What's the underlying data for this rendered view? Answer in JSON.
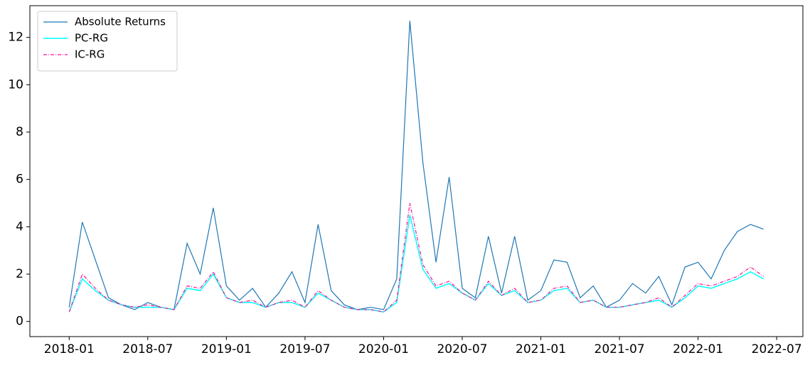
{
  "chart_data": {
    "type": "line",
    "x": [
      "2018-01",
      "2018-02",
      "2018-03",
      "2018-04",
      "2018-05",
      "2018-06",
      "2018-07",
      "2018-08",
      "2018-09",
      "2018-10",
      "2018-11",
      "2018-12",
      "2019-01",
      "2019-02",
      "2019-03",
      "2019-04",
      "2019-05",
      "2019-06",
      "2019-07",
      "2019-08",
      "2019-09",
      "2019-10",
      "2019-11",
      "2019-12",
      "2020-01",
      "2020-02",
      "2020-03",
      "2020-04",
      "2020-05",
      "2020-06",
      "2020-07",
      "2020-08",
      "2020-09",
      "2020-10",
      "2020-11",
      "2020-12",
      "2021-01",
      "2021-02",
      "2021-03",
      "2021-04",
      "2021-05",
      "2021-06",
      "2021-07",
      "2021-08",
      "2021-09",
      "2021-10",
      "2021-11",
      "2021-12",
      "2022-01",
      "2022-02",
      "2022-03",
      "2022-04",
      "2022-05",
      "2022-06"
    ],
    "series": [
      {
        "name": "Absolute Returns",
        "color": "#1f77b4",
        "dash": "none",
        "width": 1.2,
        "values": [
          0.6,
          4.2,
          2.6,
          1.0,
          0.7,
          0.5,
          0.8,
          0.6,
          0.5,
          3.3,
          2.0,
          4.8,
          1.5,
          0.9,
          1.4,
          0.6,
          1.2,
          2.1,
          0.8,
          4.1,
          1.3,
          0.7,
          0.5,
          0.6,
          0.5,
          1.8,
          12.7,
          6.7,
          2.5,
          6.1,
          1.4,
          1.0,
          3.6,
          1.2,
          3.6,
          0.9,
          1.3,
          2.6,
          2.5,
          1.0,
          1.5,
          0.6,
          0.9,
          1.6,
          1.2,
          1.9,
          0.7,
          2.3,
          2.5,
          1.8,
          3.0,
          3.8,
          4.1,
          3.9
        ]
      },
      {
        "name": "PC-RG",
        "color": "#00ffff",
        "dash": "none",
        "width": 1.5,
        "values": [
          0.4,
          1.8,
          1.3,
          0.9,
          0.7,
          0.6,
          0.6,
          0.6,
          0.5,
          1.4,
          1.3,
          2.0,
          1.0,
          0.8,
          0.8,
          0.6,
          0.8,
          0.8,
          0.6,
          1.2,
          0.9,
          0.6,
          0.5,
          0.5,
          0.4,
          0.8,
          4.5,
          2.2,
          1.4,
          1.6,
          1.2,
          0.9,
          1.6,
          1.1,
          1.3,
          0.8,
          0.9,
          1.3,
          1.4,
          0.8,
          0.9,
          0.6,
          0.6,
          0.7,
          0.8,
          0.9,
          0.6,
          1.0,
          1.5,
          1.4,
          1.6,
          1.8,
          2.1,
          1.8
        ]
      },
      {
        "name": "IC-RG",
        "color": "#ff1493",
        "dash": "5,2,1,2",
        "width": 1.2,
        "values": [
          0.4,
          2.0,
          1.4,
          0.9,
          0.7,
          0.6,
          0.7,
          0.6,
          0.5,
          1.5,
          1.4,
          2.1,
          1.0,
          0.8,
          0.9,
          0.6,
          0.8,
          0.9,
          0.6,
          1.3,
          0.9,
          0.6,
          0.5,
          0.5,
          0.4,
          0.9,
          5.0,
          2.4,
          1.5,
          1.7,
          1.2,
          0.9,
          1.7,
          1.1,
          1.4,
          0.8,
          0.9,
          1.4,
          1.5,
          0.8,
          0.9,
          0.6,
          0.6,
          0.7,
          0.8,
          1.0,
          0.6,
          1.1,
          1.6,
          1.5,
          1.7,
          1.9,
          2.3,
          1.9
        ]
      }
    ],
    "xlim": [
      "2017-10",
      "2022-09"
    ],
    "xticks": [
      "2018-01",
      "2018-07",
      "2019-01",
      "2019-07",
      "2020-01",
      "2020-07",
      "2021-01",
      "2021-07",
      "2022-01",
      "2022-07"
    ],
    "ylim": [
      -0.64,
      13.34
    ],
    "yticks": [
      0,
      2,
      4,
      6,
      8,
      10,
      12
    ],
    "grid": false,
    "legend": "upper-left"
  }
}
